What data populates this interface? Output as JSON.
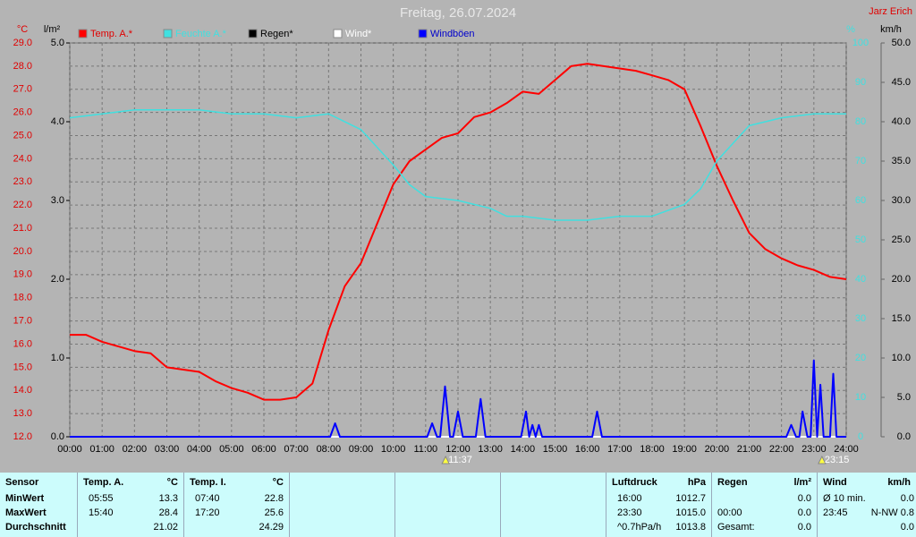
{
  "chart_data": {
    "type": "line",
    "title": "Freitag, 26.07.2024",
    "author": "Jarz Erich",
    "y_unit": "°C",
    "y4_unit": "l/m²",
    "y2_unit": "%",
    "y3_unit": "km/h",
    "xlim": [
      0,
      24
    ],
    "xticks": [
      {
        "value": 0,
        "label": "00:00"
      },
      {
        "value": 1,
        "label": "01:00"
      },
      {
        "value": 2,
        "label": "02:00"
      },
      {
        "value": 3,
        "label": "03:00"
      },
      {
        "value": 4,
        "label": "04:00"
      },
      {
        "value": 5,
        "label": "05:00"
      },
      {
        "value": 6,
        "label": "06:00"
      },
      {
        "value": 7,
        "label": "07:00"
      },
      {
        "value": 8,
        "label": "08:00"
      },
      {
        "value": 9,
        "label": "09:00"
      },
      {
        "value": 10,
        "label": "10:00"
      },
      {
        "value": 11,
        "label": "11:00"
      },
      {
        "value": 12,
        "label": "12:00"
      },
      {
        "value": 13,
        "label": "13:00"
      },
      {
        "value": 14,
        "label": "14:00"
      },
      {
        "value": 15,
        "label": "15:00"
      },
      {
        "value": 16,
        "label": "16:00"
      },
      {
        "value": 17,
        "label": "17:00"
      },
      {
        "value": 18,
        "label": "18:00"
      },
      {
        "value": 19,
        "label": "19:00"
      },
      {
        "value": 20,
        "label": "20:00"
      },
      {
        "value": 21,
        "label": "21:00"
      },
      {
        "value": 22,
        "label": "22:00"
      },
      {
        "value": 23,
        "label": "23:00"
      },
      {
        "value": 24,
        "label": "24:00"
      }
    ],
    "ylim": [
      12,
      29
    ],
    "yticks": [
      {
        "value": 12,
        "label": "12.0"
      },
      {
        "value": 13,
        "label": "13.0"
      },
      {
        "value": 14,
        "label": "14.0"
      },
      {
        "value": 15,
        "label": "15.0"
      },
      {
        "value": 16,
        "label": "16.0"
      },
      {
        "value": 17,
        "label": "17.0"
      },
      {
        "value": 18,
        "label": "18.0"
      },
      {
        "value": 19,
        "label": "19.0"
      },
      {
        "value": 20,
        "label": "20.0"
      },
      {
        "value": 21,
        "label": "21.0"
      },
      {
        "value": 22,
        "label": "22.0"
      },
      {
        "value": 23,
        "label": "23.0"
      },
      {
        "value": 24,
        "label": "24.0"
      },
      {
        "value": 25,
        "label": "25.0"
      },
      {
        "value": 26,
        "label": "26.0"
      },
      {
        "value": 27,
        "label": "27.0"
      },
      {
        "value": 28,
        "label": "28.0"
      },
      {
        "value": 29,
        "label": "29.0"
      }
    ],
    "y4lim": [
      0,
      5
    ],
    "y4ticks": [
      {
        "value": 0,
        "label": "0.0"
      },
      {
        "value": 1,
        "label": "1.0"
      },
      {
        "value": 2,
        "label": "2.0"
      },
      {
        "value": 3,
        "label": "3.0"
      },
      {
        "value": 4,
        "label": "4.0"
      },
      {
        "value": 5,
        "label": "5.0"
      }
    ],
    "y2lim": [
      0,
      100
    ],
    "y2ticks": [
      0,
      10,
      20,
      30,
      40,
      50,
      60,
      70,
      80,
      90,
      100
    ],
    "y3lim": [
      0,
      50
    ],
    "y3ticks": [
      {
        "value": 0,
        "label": "0.0"
      },
      {
        "value": 5,
        "label": "5.0"
      },
      {
        "value": 10,
        "label": "10.0"
      },
      {
        "value": 15,
        "label": "15.0"
      },
      {
        "value": 20,
        "label": "20.0"
      },
      {
        "value": 25,
        "label": "25.0"
      },
      {
        "value": 30,
        "label": "30.0"
      },
      {
        "value": 35,
        "label": "35.0"
      },
      {
        "value": 40,
        "label": "40.0"
      },
      {
        "value": 45,
        "label": "45.0"
      },
      {
        "value": 50,
        "label": "50.0"
      }
    ],
    "grid": true,
    "series": [
      {
        "name": "Temp. A.*",
        "color": "#ff0000",
        "axis": "y",
        "x": [
          0,
          0.5,
          1,
          1.5,
          2,
          2.5,
          3,
          4,
          4.5,
          5,
          5.5,
          6,
          6.5,
          7,
          7.5,
          8,
          8.5,
          9,
          9.5,
          10,
          10.5,
          11,
          11.5,
          12,
          12.5,
          13,
          13.5,
          14,
          14.5,
          15,
          15.5,
          16,
          16.5,
          17,
          17.5,
          18,
          18.5,
          19,
          19.5,
          20,
          20.5,
          21,
          21.5,
          22,
          22.5,
          23,
          23.5,
          24
        ],
        "values": [
          16.4,
          16.4,
          16.1,
          15.9,
          15.7,
          15.6,
          15.0,
          14.8,
          14.4,
          14.1,
          13.9,
          13.6,
          13.6,
          13.7,
          14.3,
          16.6,
          18.5,
          19.5,
          21.2,
          22.9,
          23.9,
          24.4,
          24.9,
          25.1,
          25.8,
          26.0,
          26.4,
          26.9,
          26.8,
          27.4,
          28.0,
          28.1,
          28.0,
          27.9,
          27.8,
          27.6,
          27.4,
          27.0,
          25.4,
          23.7,
          22.2,
          20.8,
          20.1,
          19.7,
          19.4,
          19.2,
          18.9,
          18.8
        ]
      },
      {
        "name": "Feuchte A.*",
        "color": "#40e0e0",
        "axis": "y2",
        "x": [
          0,
          1,
          2,
          3,
          4,
          5,
          6,
          7,
          8,
          9,
          10,
          10.5,
          11,
          12,
          13,
          13.5,
          14,
          15,
          16,
          17,
          18,
          19,
          19.5,
          20,
          21,
          22,
          23,
          24
        ],
        "values": [
          81,
          82,
          83,
          83,
          83,
          82,
          82,
          81,
          82,
          78,
          69,
          64,
          61,
          60,
          58,
          56,
          56,
          55,
          55,
          56,
          56,
          59,
          63,
          70,
          79,
          81,
          82,
          82
        ]
      },
      {
        "name": "Regen*",
        "color": "#000000",
        "axis": "y4",
        "x": [
          0,
          24
        ],
        "values": [
          0,
          0
        ]
      },
      {
        "name": "Wind*",
        "color": "#ffffff",
        "axis": "y3",
        "x": [
          0,
          24
        ],
        "values": [
          0,
          0
        ]
      },
      {
        "name": "Windböen",
        "color": "#0000ff",
        "axis": "y3",
        "x": [
          0,
          8.05,
          8.2,
          8.35,
          11.05,
          11.2,
          11.35,
          11.45,
          11.6,
          11.75,
          11.85,
          12,
          12.15,
          12.55,
          12.7,
          12.85,
          13.95,
          14.1,
          14.2,
          14.3,
          14.4,
          14.5,
          14.6,
          16.15,
          16.3,
          16.45,
          22.15,
          22.3,
          22.45,
          22.55,
          22.65,
          22.8,
          22.9,
          23.0,
          23.1,
          23.2,
          23.3,
          23.5,
          23.6,
          23.7,
          24
        ],
        "values": [
          0,
          0,
          1.7,
          0,
          0,
          1.7,
          0,
          0,
          6.4,
          0,
          0,
          3.2,
          0,
          0,
          4.8,
          0,
          0,
          3.2,
          0,
          1.5,
          0,
          1.5,
          0,
          0,
          3.2,
          0,
          0,
          1.5,
          0,
          0,
          3.2,
          0,
          0,
          9.7,
          0,
          6.6,
          0,
          0,
          8.0,
          0,
          0
        ]
      }
    ],
    "annotations": [
      {
        "x": 11.617,
        "label": "11:37"
      },
      {
        "x": 23.25,
        "label": "23:15"
      }
    ]
  },
  "table": {
    "label_header": "Sensor",
    "row_labels": [
      "MinWert",
      "MaxWert",
      "Durchschnitt"
    ],
    "sections": [
      {
        "header": "Temp. A.",
        "unit": "°C",
        "rows": [
          {
            "time": "05:55",
            "value": "13.3"
          },
          {
            "time": "15:40",
            "value": "28.4"
          },
          {
            "value": "21.02"
          }
        ]
      },
      {
        "header": "Temp. I.",
        "unit": "°C",
        "rows": [
          {
            "time": "07:40",
            "value": "22.8"
          },
          {
            "time": "17:20",
            "value": "25.6"
          },
          {
            "value": "24.29"
          }
        ]
      },
      {
        "header": "Luftdruck",
        "unit": "hPa",
        "rows": [
          {
            "time": "16:00",
            "value": "1012.7"
          },
          {
            "time": "23:30",
            "value": "1015.0"
          },
          {
            "time": "^0.7hPa/h",
            "value": "1013.8"
          }
        ]
      },
      {
        "header": "Regen",
        "unit": "l/m²",
        "rows": [
          {
            "value": "0.0"
          },
          {
            "time": "00:00",
            "value": "0.0"
          },
          {
            "time": "Gesamt:",
            "value": "0.0"
          }
        ]
      },
      {
        "header": "Wind",
        "unit": "km/h",
        "rows": [
          {
            "time": "Ø 10 min.",
            "value": "0.0"
          },
          {
            "time": "23:45",
            "value": "N-NW 0.8"
          },
          {
            "value": "0.0"
          }
        ]
      }
    ]
  }
}
